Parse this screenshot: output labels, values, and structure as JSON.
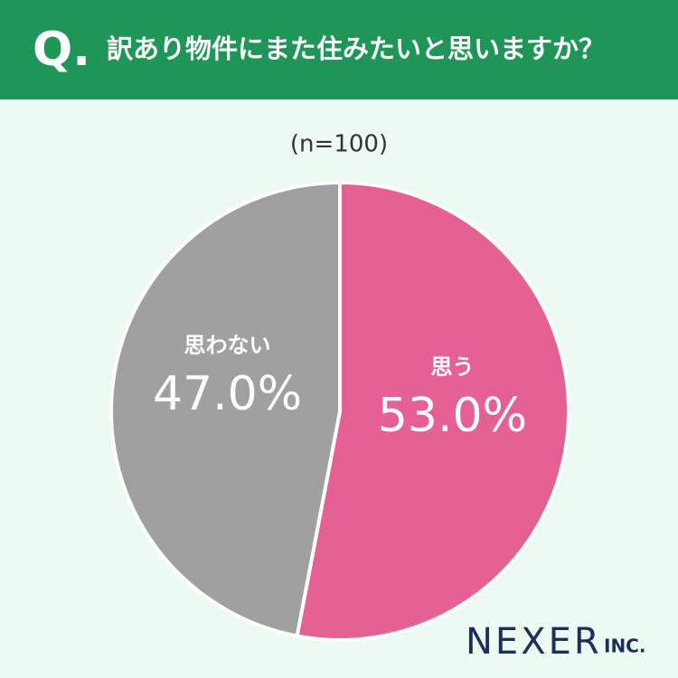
{
  "chart_data": {
    "type": "pie",
    "question_mark": "Q.",
    "title": "訳あり物件にまた住みたいと思いますか？",
    "subtitle": "(n=100)",
    "categories": [
      "思う",
      "思わない"
    ],
    "values": [
      53.0,
      47.0
    ],
    "value_labels": [
      "53.0%",
      "47.0%"
    ],
    "colors": [
      "#e56093",
      "#a0a0a0"
    ],
    "brand": "NEXER",
    "brand_suffix": "INC."
  }
}
